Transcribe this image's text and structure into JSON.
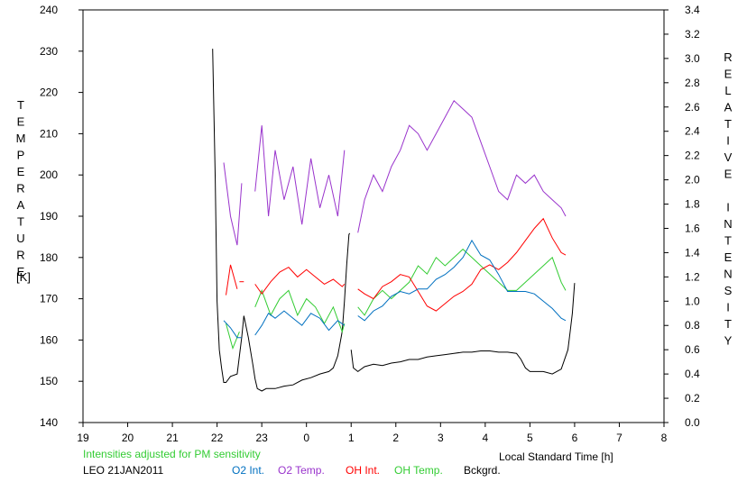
{
  "chart_data": {
    "type": "line",
    "xlabel": "Local Standard Time [h]",
    "ylabel_left": "TEMPERATURE",
    "ylabel_left_unit": "[K]",
    "ylabel_right": "RELATIVE INTENSITY",
    "note": "Intensities adjusted for PM sensitivity",
    "caption": "LEO 21JAN2011",
    "xlim": [
      19,
      32
    ],
    "x_ticks": [
      19,
      20,
      21,
      22,
      23,
      24,
      25,
      26,
      27,
      28,
      29,
      30,
      31,
      32
    ],
    "x_tick_labels": [
      "19",
      "20",
      "21",
      "22",
      "23",
      "0",
      "1",
      "2",
      "3",
      "4",
      "5",
      "6",
      "7",
      "8"
    ],
    "ylim_left": [
      140,
      240
    ],
    "y_ticks_left": [
      "140",
      "150",
      "160",
      "170",
      "180",
      "190",
      "200",
      "210",
      "220",
      "230",
      "240"
    ],
    "ylim_right": [
      0.0,
      3.4
    ],
    "y_ticks_right": [
      "0.0",
      "0.2",
      "0.4",
      "0.6",
      "0.8",
      "1.0",
      "1.2",
      "1.4",
      "1.6",
      "1.8",
      "2.0",
      "2.2",
      "2.4",
      "2.6",
      "2.8",
      "3.0",
      "3.2",
      "3.4"
    ],
    "grid": false,
    "legend_position": "bottom",
    "series": [
      {
        "name": "O2 Int.",
        "axis": "right",
        "color": "#0070c0",
        "segments": [
          {
            "x": [
              22.15,
              22.3,
              22.45,
              22.55
            ],
            "y": [
              0.84,
              0.78,
              0.7,
              0.7
            ]
          },
          {
            "x": [
              22.85,
              23.0,
              23.15,
              23.3,
              23.5,
              23.7,
              23.9,
              24.1,
              24.3,
              24.5,
              24.7,
              24.85
            ],
            "y": [
              0.72,
              0.8,
              0.9,
              0.86,
              0.92,
              0.86,
              0.8,
              0.9,
              0.86,
              0.76,
              0.84,
              0.8
            ]
          },
          {
            "x": [
              25.15,
              25.3,
              25.5,
              25.7,
              25.9,
              26.1,
              26.3,
              26.5,
              26.7,
              26.9,
              27.1,
              27.3,
              27.5,
              27.7,
              27.9,
              28.1,
              28.3,
              28.5,
              28.7,
              28.9,
              29.1,
              29.3,
              29.5,
              29.7,
              29.8
            ],
            "y": [
              0.88,
              0.84,
              0.92,
              0.96,
              1.04,
              1.08,
              1.06,
              1.1,
              1.1,
              1.18,
              1.22,
              1.28,
              1.36,
              1.5,
              1.38,
              1.34,
              1.22,
              1.08,
              1.08,
              1.08,
              1.06,
              1.0,
              0.94,
              0.86,
              0.84
            ]
          }
        ]
      },
      {
        "name": "O2 Temp.",
        "axis": "left",
        "color": "#9933cc",
        "segments": [
          {
            "x": [
              22.15,
              22.3,
              22.45,
              22.55
            ],
            "y": [
              203,
              190,
              183,
              198
            ]
          },
          {
            "x": [
              22.85,
              23.0,
              23.15,
              23.3,
              23.5,
              23.7,
              23.9,
              24.1,
              24.3,
              24.5,
              24.7,
              24.85
            ],
            "y": [
              196,
              212,
              190,
              206,
              194,
              202,
              188,
              204,
              192,
              200,
              190,
              206
            ]
          },
          {
            "x": [
              25.15,
              25.3,
              25.5,
              25.7,
              25.9,
              26.1,
              26.3,
              26.5,
              26.7,
              26.9,
              27.1,
              27.3,
              27.5,
              27.7,
              27.9,
              28.1,
              28.3,
              28.5,
              28.7,
              28.9,
              29.1,
              29.3,
              29.5,
              29.7,
              29.8
            ],
            "y": [
              186,
              194,
              200,
              196,
              202,
              206,
              212,
              210,
              206,
              210,
              214,
              218,
              216,
              214,
              208,
              202,
              196,
              194,
              200,
              198,
              200,
              196,
              194,
              192,
              190
            ]
          }
        ]
      },
      {
        "name": "OH Int.",
        "axis": "right",
        "color": "#ff0000",
        "segments": [
          {
            "x": [
              22.2,
              22.3,
              22.45
            ],
            "y": [
              1.05,
              1.3,
              1.1
            ]
          },
          {
            "x": [
              22.5,
              22.6
            ],
            "y": [
              1.16,
              1.16
            ]
          },
          {
            "x": [
              22.85,
              23.0,
              23.2,
              23.4,
              23.6,
              23.8,
              24.0,
              24.2,
              24.4,
              24.6,
              24.8,
              24.85
            ],
            "y": [
              1.14,
              1.06,
              1.16,
              1.24,
              1.28,
              1.2,
              1.26,
              1.2,
              1.14,
              1.18,
              1.12,
              1.14
            ]
          },
          {
            "x": [
              25.15,
              25.3,
              25.5,
              25.7,
              25.9,
              26.1,
              26.3,
              26.5,
              26.7,
              26.9,
              27.1,
              27.3,
              27.5,
              27.7,
              27.9,
              28.1,
              28.3,
              28.5,
              28.7,
              28.9,
              29.1,
              29.3,
              29.5,
              29.7,
              29.8
            ],
            "y": [
              1.1,
              1.06,
              1.02,
              1.12,
              1.16,
              1.22,
              1.2,
              1.08,
              0.96,
              0.92,
              0.98,
              1.04,
              1.08,
              1.14,
              1.26,
              1.3,
              1.26,
              1.32,
              1.4,
              1.5,
              1.6,
              1.68,
              1.52,
              1.4,
              1.38
            ]
          }
        ]
      },
      {
        "name": "OH Temp.",
        "axis": "left",
        "color": "#33cc33",
        "segments": [
          {
            "x": [
              22.2,
              22.35,
              22.5
            ],
            "y": [
              164,
              158,
              162
            ]
          },
          {
            "x": [
              22.85,
              23.0,
              23.2,
              23.4,
              23.6,
              23.8,
              24.0,
              24.2,
              24.4,
              24.6,
              24.8,
              24.85
            ],
            "y": [
              168,
              172,
              166,
              170,
              172,
              166,
              170,
              168,
              164,
              168,
              162,
              164
            ]
          },
          {
            "x": [
              25.15,
              25.3,
              25.5,
              25.7,
              25.9,
              26.1,
              26.3,
              26.5,
              26.7,
              26.9,
              27.1,
              27.3,
              27.5,
              27.7,
              27.9,
              28.1,
              28.3,
              28.5,
              28.7,
              28.9,
              29.1,
              29.3,
              29.5,
              29.7,
              29.8
            ],
            "y": [
              168,
              166,
              170,
              172,
              170,
              172,
              174,
              178,
              176,
              180,
              178,
              180,
              182,
              180,
              178,
              176,
              174,
              172,
              172,
              174,
              176,
              178,
              180,
              174,
              172
            ]
          }
        ]
      },
      {
        "name": "Bckgrd.",
        "axis": "right",
        "color": "#000000",
        "segments": [
          {
            "x": [
              21.9,
              21.96,
              22.0,
              22.05,
              22.1,
              22.15,
              22.2,
              22.3,
              22.45,
              22.55,
              22.6,
              22.7,
              22.8,
              22.85,
              22.9,
              23.0,
              23.1,
              23.3,
              23.5,
              23.7,
              23.9,
              24.1,
              24.3,
              24.5,
              24.6,
              24.7,
              24.8,
              24.85,
              24.9,
              24.95,
              24.97
            ],
            "y": [
              3.08,
              2.0,
              1.0,
              0.6,
              0.45,
              0.33,
              0.33,
              0.38,
              0.4,
              0.7,
              0.88,
              0.7,
              0.48,
              0.36,
              0.28,
              0.26,
              0.28,
              0.28,
              0.3,
              0.31,
              0.35,
              0.37,
              0.4,
              0.42,
              0.45,
              0.55,
              0.75,
              1.0,
              1.3,
              1.55,
              1.56
            ]
          },
          {
            "x": [
              25.0,
              25.05,
              25.15,
              25.3,
              25.5,
              25.7,
              25.9,
              26.1,
              26.3,
              26.5,
              26.7,
              26.9,
              27.1,
              27.3,
              27.5,
              27.7,
              27.9,
              28.1,
              28.3,
              28.5,
              28.7,
              28.8,
              28.9,
              29.0,
              29.1,
              29.3,
              29.5,
              29.7,
              29.85,
              29.9,
              29.95,
              30.0
            ],
            "y": [
              0.6,
              0.45,
              0.42,
              0.46,
              0.48,
              0.47,
              0.49,
              0.5,
              0.52,
              0.52,
              0.54,
              0.55,
              0.56,
              0.57,
              0.58,
              0.58,
              0.59,
              0.59,
              0.58,
              0.58,
              0.57,
              0.52,
              0.45,
              0.42,
              0.42,
              0.42,
              0.4,
              0.44,
              0.6,
              0.75,
              0.9,
              1.15
            ]
          }
        ]
      }
    ]
  }
}
